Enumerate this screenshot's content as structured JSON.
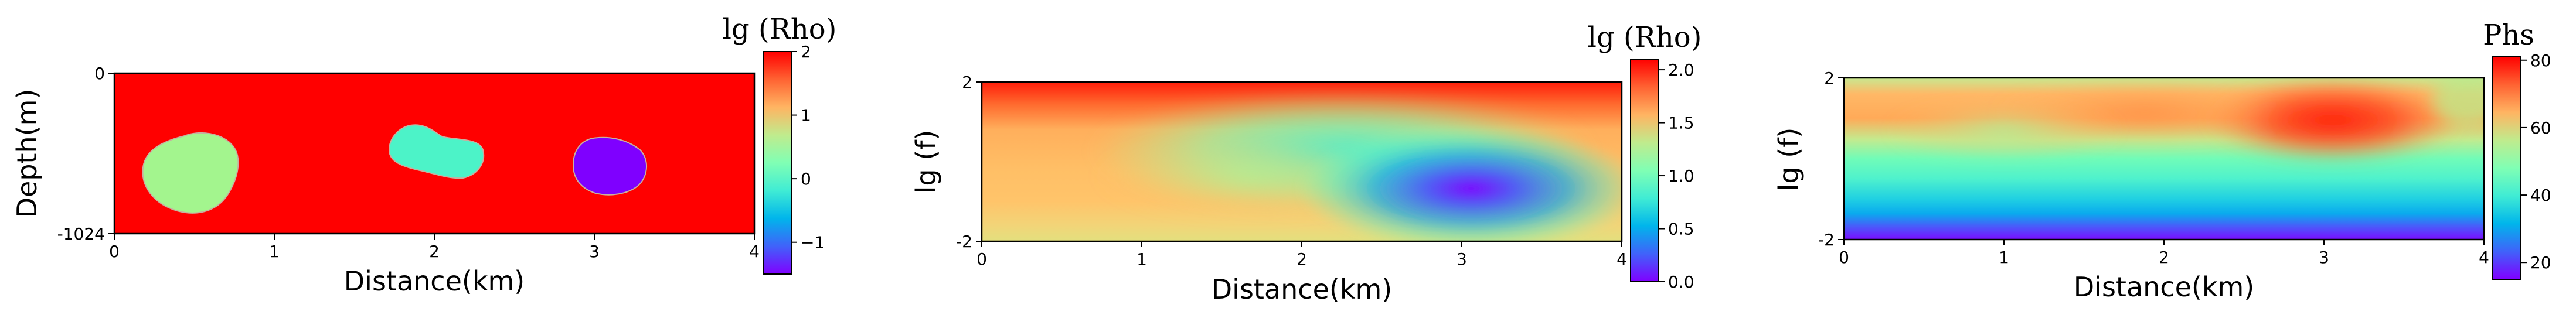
{
  "chart_data": [
    {
      "type": "heatmap",
      "title": "",
      "xlabel": "Distance(km)",
      "ylabel": "Depth(m)",
      "xlim": [
        0,
        4
      ],
      "x_ticks": [
        "0",
        "1",
        "2",
        "3",
        "4"
      ],
      "y_ticks": [
        "0",
        "-1024"
      ],
      "colorbar": {
        "title": "lg (Rho)",
        "range": [
          -1.5,
          2
        ],
        "ticks": [
          "2",
          "1",
          "0",
          "−1"
        ],
        "colormap": "rainbow"
      },
      "background_value": 2.0,
      "bodies": [
        {
          "center_km": 0.45,
          "value": 0.35,
          "color": "#a3f58e"
        },
        {
          "center_km": 2.0,
          "value": 0.05,
          "color": "#4cf3c8"
        },
        {
          "center_km": 3.05,
          "value": -1.5,
          "color": "#7f00ff"
        }
      ]
    },
    {
      "type": "heatmap",
      "title": "",
      "xlabel": "Distance(km)",
      "ylabel": "lg (f)",
      "xlim": [
        0,
        4
      ],
      "x_ticks": [
        "0",
        "1",
        "2",
        "3",
        "4"
      ],
      "y_ticks": [
        "2",
        "-2"
      ],
      "colorbar": {
        "title": "lg (Rho)",
        "range": [
          0,
          2.1
        ],
        "ticks": [
          "2.0",
          "1.5",
          "1.0",
          "0.5",
          "0.0"
        ],
        "colormap": "rainbow"
      }
    },
    {
      "type": "heatmap",
      "title": "",
      "xlabel": "Distance(km)",
      "ylabel": "lg (f)",
      "xlim": [
        0,
        4
      ],
      "x_ticks": [
        "0",
        "1",
        "2",
        "3",
        "4"
      ],
      "y_ticks": [
        "2",
        "-2"
      ],
      "colorbar": {
        "title": "Phs",
        "range": [
          15,
          81
        ],
        "ticks": [
          "80",
          "60",
          "40",
          "20"
        ],
        "colormap": "rainbow"
      }
    }
  ]
}
